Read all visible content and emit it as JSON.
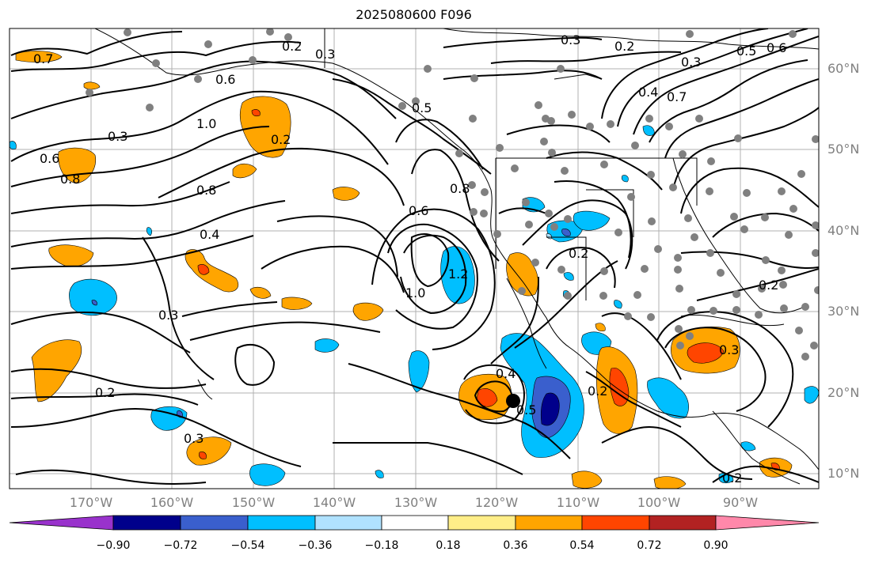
{
  "title": "2025080600 F096",
  "lat_labels": [
    "60°N",
    "50°N",
    "40°N",
    "30°N",
    "20°N",
    "10°N"
  ],
  "lon_labels": [
    "170°W",
    "160°W",
    "150°W",
    "140°W",
    "130°W",
    "120°W",
    "110°W",
    "100°W",
    "90°W"
  ],
  "colorbar": {
    "ticks": [
      "−0.90",
      "−0.72",
      "−0.54",
      "−0.36",
      "−0.18",
      "0.18",
      "0.36",
      "0.54",
      "0.72",
      "0.90"
    ],
    "colors": [
      "#9932cc",
      "#00008b",
      "#3a5fcd",
      "#00bfff",
      "#b0e2ff",
      "#ffffff",
      "#ffee88",
      "#ffa500",
      "#ff4500",
      "#b22222",
      "#ff88aa"
    ]
  },
  "contour_labels": [
    "0.7",
    "0.6",
    "0.8",
    "1.0",
    "0.6",
    "0.2",
    "0.3",
    "0.8",
    "0.4",
    "0.3",
    "0.2",
    "0.3",
    "1.0",
    "1.2",
    "0.6",
    "0.8",
    "0.5",
    "0.2",
    "0.4",
    "0.5",
    "0.2",
    "0.3",
    "0.2",
    "0.3",
    "0.2",
    "0.5",
    "0.6",
    "0.4",
    "0.7",
    "0.3",
    "0.2",
    "0.3",
    "0.2"
  ],
  "storm_marker": "storm-center-dot"
}
